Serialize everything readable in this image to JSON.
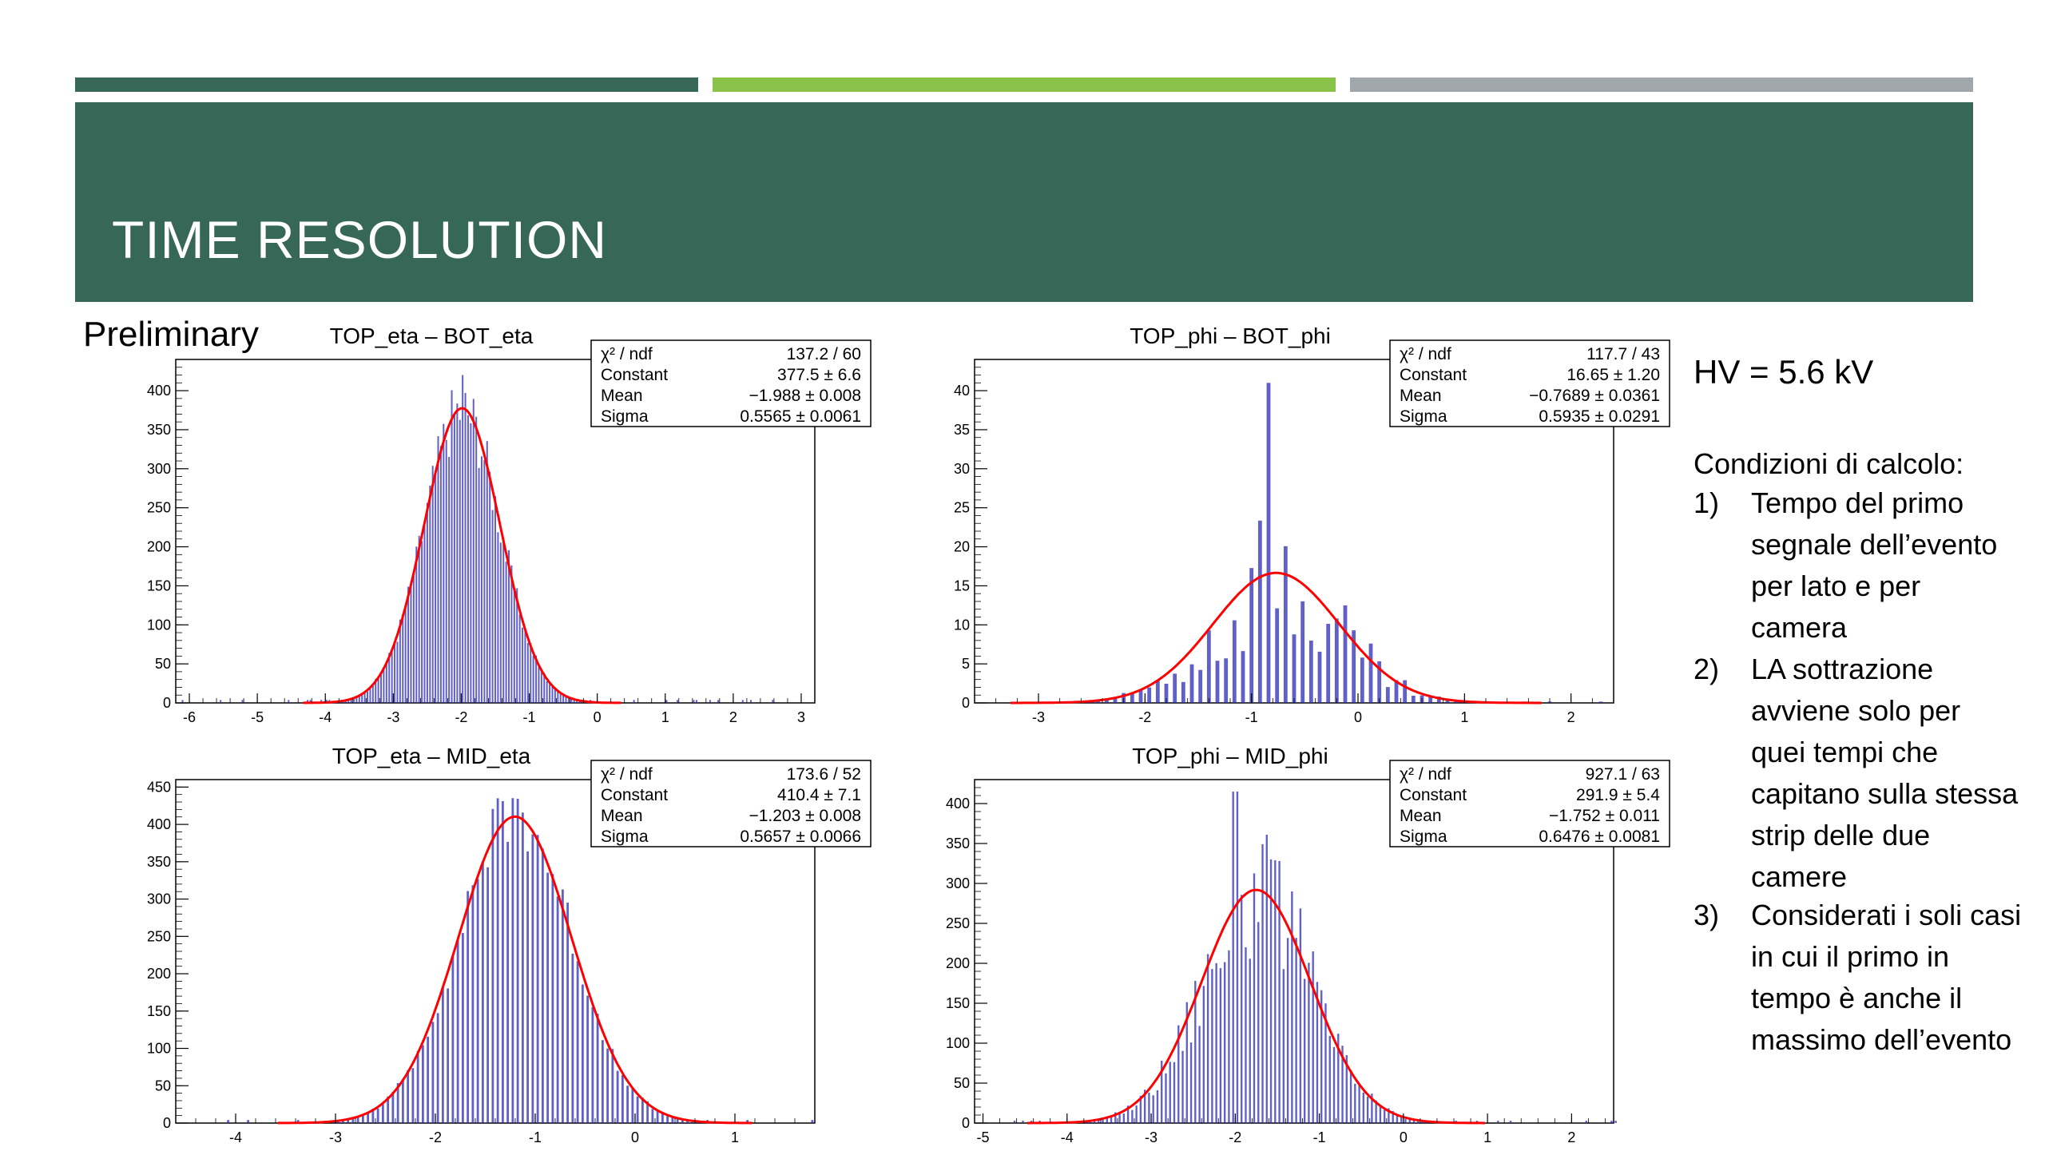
{
  "slide": {
    "title": "TIME RESOLUTION",
    "preliminary": "Preliminary",
    "hv": "HV = 5.6 kV",
    "conditions_title": "Condizioni di calcolo:",
    "conditions": [
      {
        "num": "1)",
        "text": "Tempo del primo segnale dell’evento per lato e per camera"
      },
      {
        "num": "2)",
        "text": "LA sottrazione avviene solo per quei tempi che capitano sulla stessa strip delle due camere"
      },
      {
        "num": "3)",
        "text": "Considerati i soli casi in cui il primo in tempo è anche il massimo dell’evento"
      }
    ],
    "colors": {
      "band": "#376757",
      "bar1": "#376757",
      "bar2": "#8bc34a",
      "bar3": "#a0a8ae",
      "hist": "#2b2bb3",
      "fit": "#ff0000"
    }
  },
  "chart_data": [
    {
      "type": "bar",
      "title": "TOP_eta – BOT_eta",
      "xlim": [
        -6.2,
        3.2
      ],
      "ylim": [
        0,
        440
      ],
      "xticks": [
        -6,
        -5,
        -4,
        -3,
        -2,
        -1,
        0,
        1,
        2,
        3
      ],
      "yticks": [
        0,
        50,
        100,
        150,
        200,
        250,
        300,
        350,
        400
      ],
      "binwidth": 0.04,
      "fit": {
        "constant": 377.5,
        "mean": -1.988,
        "sigma": 0.5565
      },
      "histogram": {
        "mean": -1.988,
        "sigma": 0.5565,
        "amplitude": 377.5,
        "noise": 0.12,
        "spike_x": -1.98,
        "spike_y": 420
      },
      "stats": [
        {
          "label": "χ² / ndf",
          "value": "137.2 / 60"
        },
        {
          "label": "Constant",
          "value": "377.5 ± 6.6"
        },
        {
          "label": "Mean",
          "value": "−1.988 ± 0.008"
        },
        {
          "label": "Sigma",
          "value": "0.5565 ± 0.0061"
        }
      ]
    },
    {
      "type": "bar",
      "title": "TOP_phi – BOT_phi",
      "xlim": [
        -3.6,
        2.4
      ],
      "ylim": [
        0,
        44
      ],
      "xticks": [
        -3,
        -2,
        -1,
        0,
        1,
        2
      ],
      "yticks": [
        0,
        5,
        10,
        15,
        20,
        25,
        30,
        35,
        40
      ],
      "binwidth": 0.08,
      "fit": {
        "constant": 16.65,
        "mean": -0.7689,
        "sigma": 0.5935
      },
      "histogram": {
        "mean": -0.7689,
        "sigma": 0.5935,
        "amplitude": 16.65,
        "noise": 0.55,
        "spike_x": -0.82,
        "spike_y": 41
      },
      "stats": [
        {
          "label": "χ² / ndf",
          "value": "117.7 / 43"
        },
        {
          "label": "Constant",
          "value": "16.65 ± 1.20"
        },
        {
          "label": "Mean",
          "value": "−0.7689 ± 0.0361"
        },
        {
          "label": "Sigma",
          "value": "0.5935 ± 0.0291"
        }
      ]
    },
    {
      "type": "bar",
      "title": "TOP_eta – MID_eta",
      "xlim": [
        -4.6,
        1.8
      ],
      "ylim": [
        0,
        460
      ],
      "xticks": [
        -4,
        -3,
        -2,
        -1,
        0,
        1
      ],
      "yticks": [
        0,
        50,
        100,
        150,
        200,
        250,
        300,
        350,
        400,
        450
      ],
      "binwidth": 0.05,
      "fit": {
        "constant": 410.4,
        "mean": -1.203,
        "sigma": 0.5657
      },
      "histogram": {
        "mean": -1.203,
        "sigma": 0.5657,
        "amplitude": 410.4,
        "noise": 0.12,
        "spike_x": -1.38,
        "spike_y": 435
      },
      "stats": [
        {
          "label": "χ² / ndf",
          "value": "173.6 / 52"
        },
        {
          "label": "Constant",
          "value": "410.4 ± 7.1"
        },
        {
          "label": "Mean",
          "value": "−1.203 ± 0.008"
        },
        {
          "label": "Sigma",
          "value": "0.5657 ± 0.0066"
        }
      ]
    },
    {
      "type": "bar",
      "title": "TOP_phi – MID_phi",
      "xlim": [
        -5.1,
        2.5
      ],
      "ylim": [
        0,
        430
      ],
      "xticks": [
        -5,
        -4,
        -3,
        -2,
        -1,
        0,
        1,
        2
      ],
      "yticks": [
        0,
        50,
        100,
        150,
        200,
        250,
        300,
        350,
        400
      ],
      "binwidth": 0.05,
      "fit": {
        "constant": 291.9,
        "mean": -1.752,
        "sigma": 0.6476
      },
      "histogram": {
        "mean": -1.752,
        "sigma": 0.6476,
        "amplitude": 291.9,
        "noise": 0.3,
        "spike_x": -2.0,
        "spike_y": 415
      },
      "stats": [
        {
          "label": "χ² / ndf",
          "value": "927.1 / 63"
        },
        {
          "label": "Constant",
          "value": "291.9 ± 5.4"
        },
        {
          "label": "Mean",
          "value": "−1.752 ± 0.011"
        },
        {
          "label": "Sigma",
          "value": "0.6476 ± 0.0081"
        }
      ]
    }
  ]
}
